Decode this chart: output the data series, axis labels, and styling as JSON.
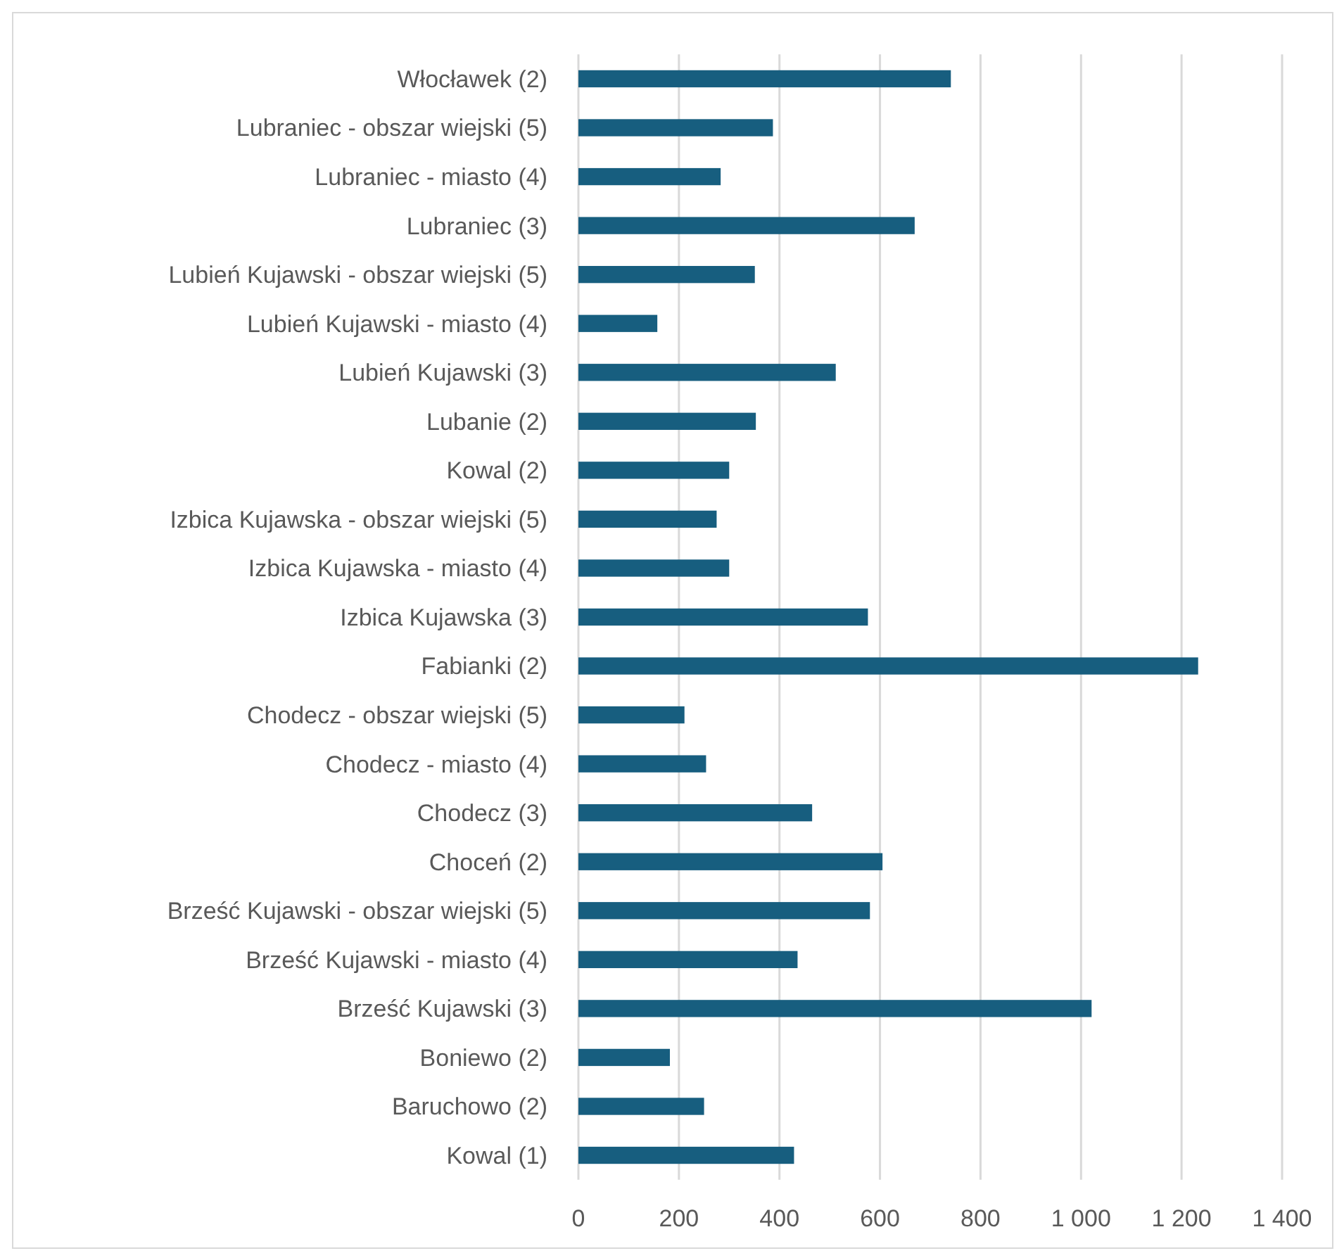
{
  "chart_data": {
    "type": "bar",
    "orientation": "horizontal",
    "categories": [
      "Włocławek (2)",
      "Lubraniec - obszar wiejski (5)",
      "Lubraniec - miasto (4)",
      "Lubraniec (3)",
      "Lubień Kujawski - obszar wiejski (5)",
      "Lubień Kujawski - miasto (4)",
      "Lubień Kujawski (3)",
      "Lubanie (2)",
      "Kowal (2)",
      "Izbica Kujawska - obszar wiejski (5)",
      "Izbica Kujawska - miasto (4)",
      "Izbica Kujawska (3)",
      "Fabianki (2)",
      "Chodecz - obszar wiejski (5)",
      "Chodecz - miasto (4)",
      "Chodecz (3)",
      "Choceń (2)",
      "Brześć Kujawski - obszar wiejski (5)",
      "Brześć Kujawski - miasto (4)",
      "Brześć Kujawski (3)",
      "Boniewo (2)",
      "Baruchowo (2)",
      "Kowal (1)"
    ],
    "values": [
      741,
      387,
      283,
      669,
      351,
      157,
      512,
      353,
      300,
      275,
      300,
      576,
      1233,
      211,
      254,
      465,
      605,
      580,
      436,
      1021,
      182,
      250,
      429
    ],
    "color": "#175e7f",
    "xlim": [
      0,
      1400
    ],
    "xticks": [
      0,
      200,
      400,
      600,
      800,
      {
        "value": 1000,
        "label": "1 000"
      },
      {
        "value": 1200,
        "label": "1 200"
      },
      {
        "value": 1400,
        "label": "1 400"
      }
    ],
    "grid": "x"
  }
}
